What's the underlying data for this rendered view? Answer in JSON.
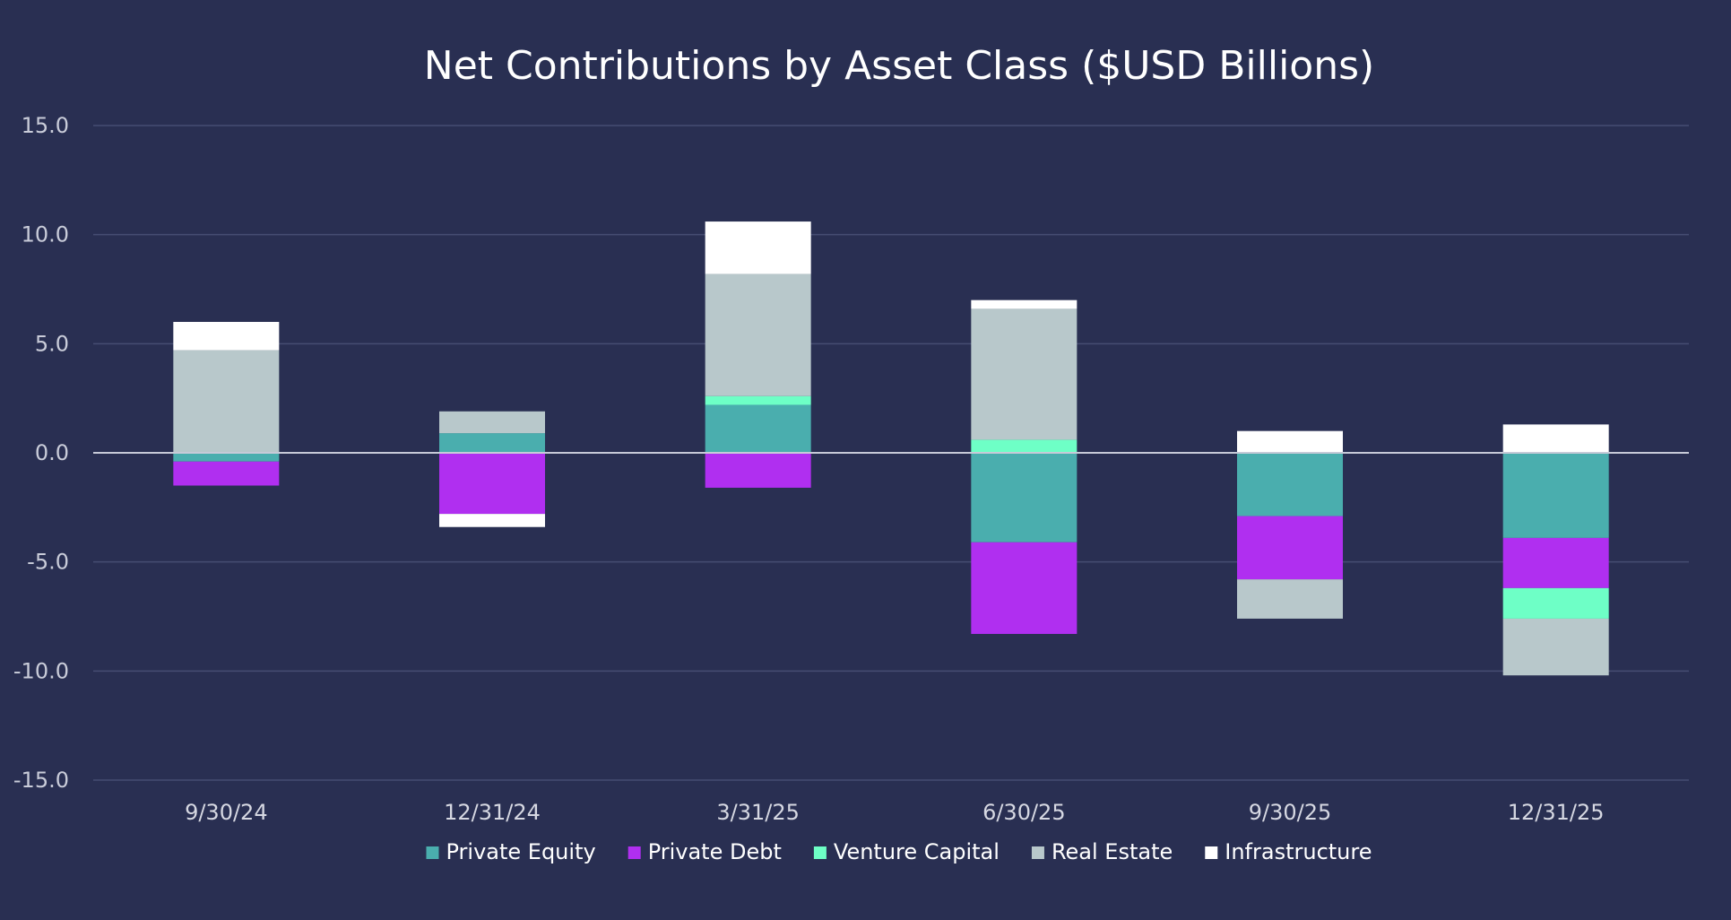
{
  "chart_data": {
    "type": "bar",
    "stacked": true,
    "title": "Net Contributions by Asset Class ($USD Billions)",
    "xlabel": "",
    "ylabel": "",
    "ylim": [
      -15,
      15
    ],
    "yticks": [
      15,
      10,
      5,
      0,
      -5,
      -10,
      -15
    ],
    "ytick_labels": [
      "15.0",
      "10.0",
      "5.0",
      "0.0",
      "-5.0",
      "-10.0",
      "-15.0"
    ],
    "categories": [
      "9/30/24",
      "12/31/24",
      "3/31/25",
      "6/30/25",
      "9/30/25",
      "12/31/25"
    ],
    "grid": true,
    "legend_position": "bottom",
    "series": [
      {
        "name": "Private Equity",
        "color": "#4aaeae",
        "values": [
          -0.4,
          0.9,
          2.2,
          -4.1,
          -2.9,
          -3.9
        ]
      },
      {
        "name": "Private Debt",
        "color": "#b02ff0",
        "values": [
          -1.1,
          -2.8,
          -1.6,
          -4.2,
          -2.9,
          -2.3
        ]
      },
      {
        "name": "Venture Capital",
        "color": "#6effc6",
        "values": [
          0.0,
          0.0,
          0.4,
          0.6,
          0.0,
          -1.4
        ]
      },
      {
        "name": "Real Estate",
        "color": "#b8c8cb",
        "values": [
          4.7,
          1.0,
          5.6,
          6.0,
          -1.8,
          -2.6
        ]
      },
      {
        "name": "Infrastructure",
        "color": "#ffffff",
        "values": [
          1.3,
          -0.6,
          2.4,
          0.4,
          1.0,
          1.3
        ]
      }
    ]
  }
}
